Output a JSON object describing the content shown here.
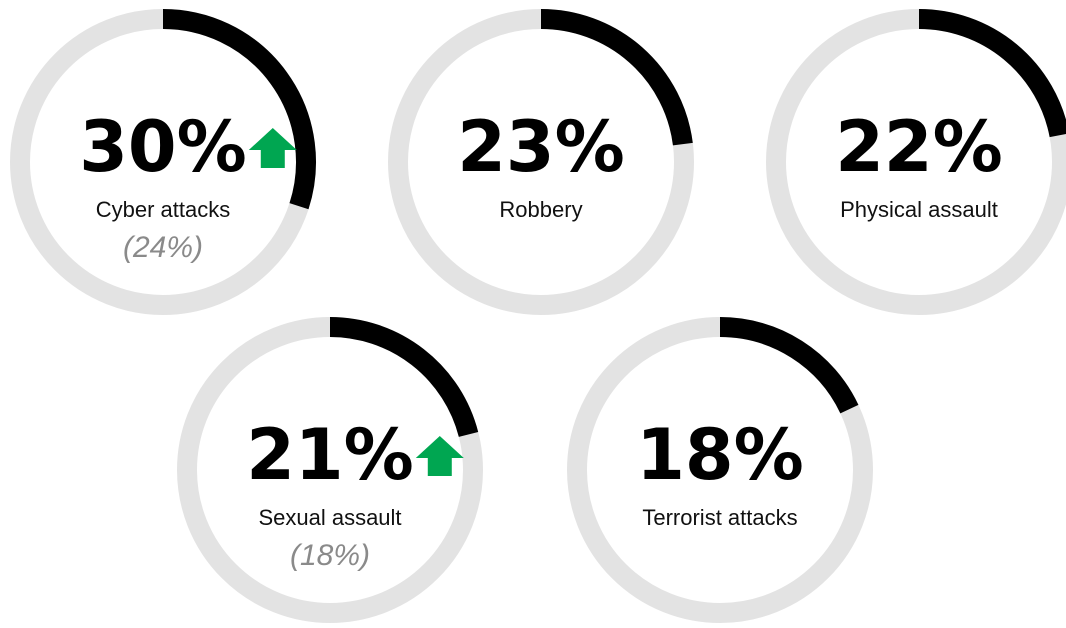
{
  "chart_data": [
    {
      "type": "donut",
      "label": "Cyber attacks",
      "values": [
        30
      ],
      "value_labels": [
        "30%"
      ],
      "total": 100,
      "color": "#000000",
      "track_color": "#e3e3e3",
      "trend": "up",
      "trend_color": "#00a651",
      "comparison": "(24%)"
    },
    {
      "type": "donut",
      "label": "Robbery",
      "values": [
        23
      ],
      "value_labels": [
        "23%"
      ],
      "total": 100,
      "color": "#000000",
      "track_color": "#e3e3e3"
    },
    {
      "type": "donut",
      "label": "Physical assault",
      "values": [
        22
      ],
      "value_labels": [
        "22%"
      ],
      "total": 100,
      "color": "#000000",
      "track_color": "#e3e3e3"
    },
    {
      "type": "donut",
      "label": "Sexual assault",
      "values": [
        21
      ],
      "value_labels": [
        "21%"
      ],
      "total": 100,
      "color": "#000000",
      "track_color": "#e3e3e3",
      "trend": "up",
      "trend_color": "#00a651",
      "comparison": "(18%)"
    },
    {
      "type": "donut",
      "label": "Terrorist attacks",
      "values": [
        18
      ],
      "value_labels": [
        "18%"
      ],
      "total": 100,
      "color": "#000000",
      "track_color": "#e3e3e3"
    }
  ]
}
